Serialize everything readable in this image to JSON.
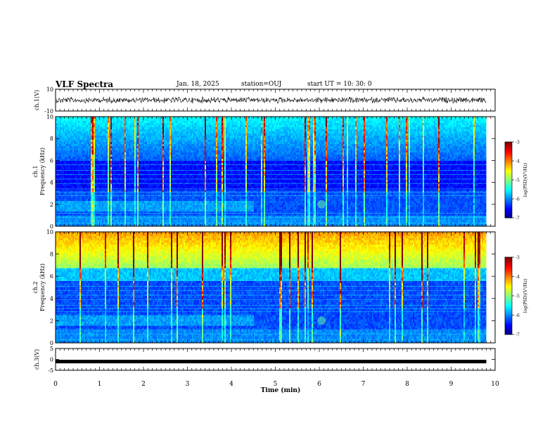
{
  "header": {
    "title": "VLF Spectra",
    "date": "Jan. 18, 2025",
    "station": "station=OUJ",
    "start": "start  UT =  10: 30: 0"
  },
  "chart_data": [
    {
      "type": "line",
      "ylabel": "ch.1(V)",
      "ylim": [
        -10,
        10
      ],
      "yticks": [
        "10",
        "-10"
      ],
      "description_values": "broadband waveform near 0 V",
      "x_range_min": [
        0,
        9.8
      ],
      "series": [
        {
          "values_approx_V": [
            0.0
          ]
        }
      ]
    },
    {
      "type": "heatmap",
      "ylabel": "ch.1\nFrequency (kHz)",
      "ylim": [
        0,
        10
      ],
      "yticks": [
        "0",
        "2",
        "4",
        "6",
        "8",
        "10"
      ],
      "x_range_min": [
        0,
        9.8
      ],
      "colorbar": {
        "label": "log(PSD)(V²/Hz)",
        "range": [
          -7,
          -3
        ],
        "ticks": [
          "-3",
          "-4",
          "-5",
          "-6",
          "-7"
        ]
      }
    },
    {
      "type": "heatmap",
      "ylabel": "ch.2\nFrequency (kHz)",
      "ylim": [
        0,
        10
      ],
      "yticks": [
        "0",
        "2",
        "4",
        "6",
        "8",
        "10"
      ],
      "x_range_min": [
        0,
        9.8
      ],
      "colorbar": {
        "label": "log(PSD)(V²/Hz)",
        "range": [
          -7,
          -3
        ],
        "ticks": [
          "-3",
          "-4",
          "-5",
          "-6",
          "-7"
        ]
      }
    },
    {
      "type": "line",
      "ylabel": "ch.3(V)",
      "ylim": [
        -5,
        5
      ],
      "yticks": [
        "5",
        "0",
        "-5"
      ],
      "x_range_min": [
        0,
        9.8
      ],
      "series": [
        {
          "values_approx_V": [
            -1.0
          ]
        }
      ]
    }
  ],
  "xaxis": {
    "label": "Time (min)",
    "ticks": [
      "0",
      "1",
      "2",
      "3",
      "4",
      "5",
      "6",
      "7",
      "8",
      "9",
      "10"
    ],
    "lim": [
      0,
      10
    ]
  }
}
